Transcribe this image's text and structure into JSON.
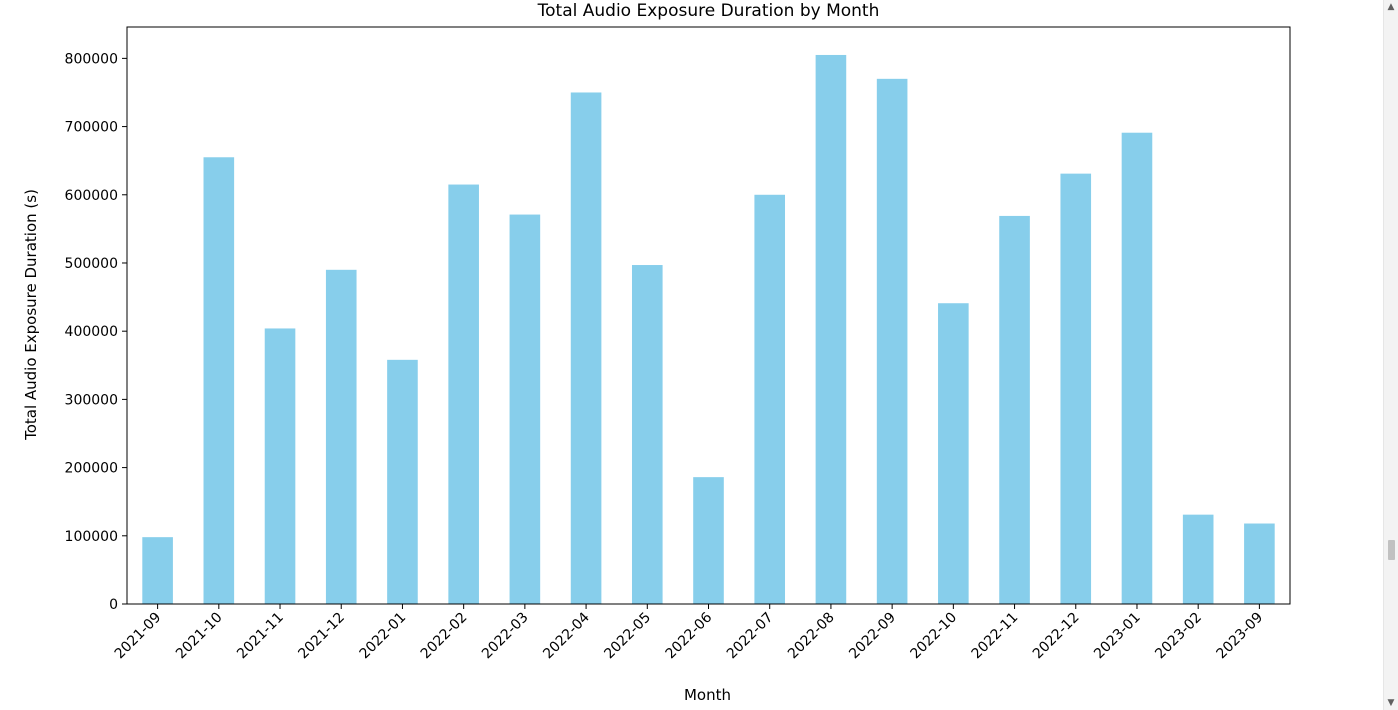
{
  "chart_data": {
    "type": "bar",
    "title": "Total Audio Exposure Duration by Month",
    "xlabel": "Month",
    "ylabel": "Total Audio Exposure Duration (s)",
    "categories": [
      "2021-09",
      "2021-10",
      "2021-11",
      "2021-12",
      "2022-01",
      "2022-02",
      "2022-03",
      "2022-04",
      "2022-05",
      "2022-06",
      "2022-07",
      "2022-08",
      "2022-09",
      "2022-10",
      "2022-11",
      "2022-12",
      "2023-01",
      "2023-02",
      "2023-09"
    ],
    "values": [
      98000,
      655000,
      404000,
      490000,
      358000,
      615000,
      571000,
      750000,
      497000,
      186000,
      600000,
      805000,
      770000,
      441000,
      569000,
      631000,
      691000,
      131000,
      118000
    ],
    "ylim": [
      0,
      846000
    ],
    "yticks": [
      0,
      100000,
      200000,
      300000,
      400000,
      500000,
      600000,
      700000,
      800000
    ],
    "ytick_labels": [
      "0",
      "100000",
      "200000",
      "300000",
      "400000",
      "500000",
      "600000",
      "700000",
      "800000"
    ],
    "grid": false,
    "legend": "none",
    "bar_color": "#87ceeb"
  },
  "scrollbar": {
    "up_icon": "chevron-up-icon",
    "down_icon": "chevron-down-icon"
  }
}
